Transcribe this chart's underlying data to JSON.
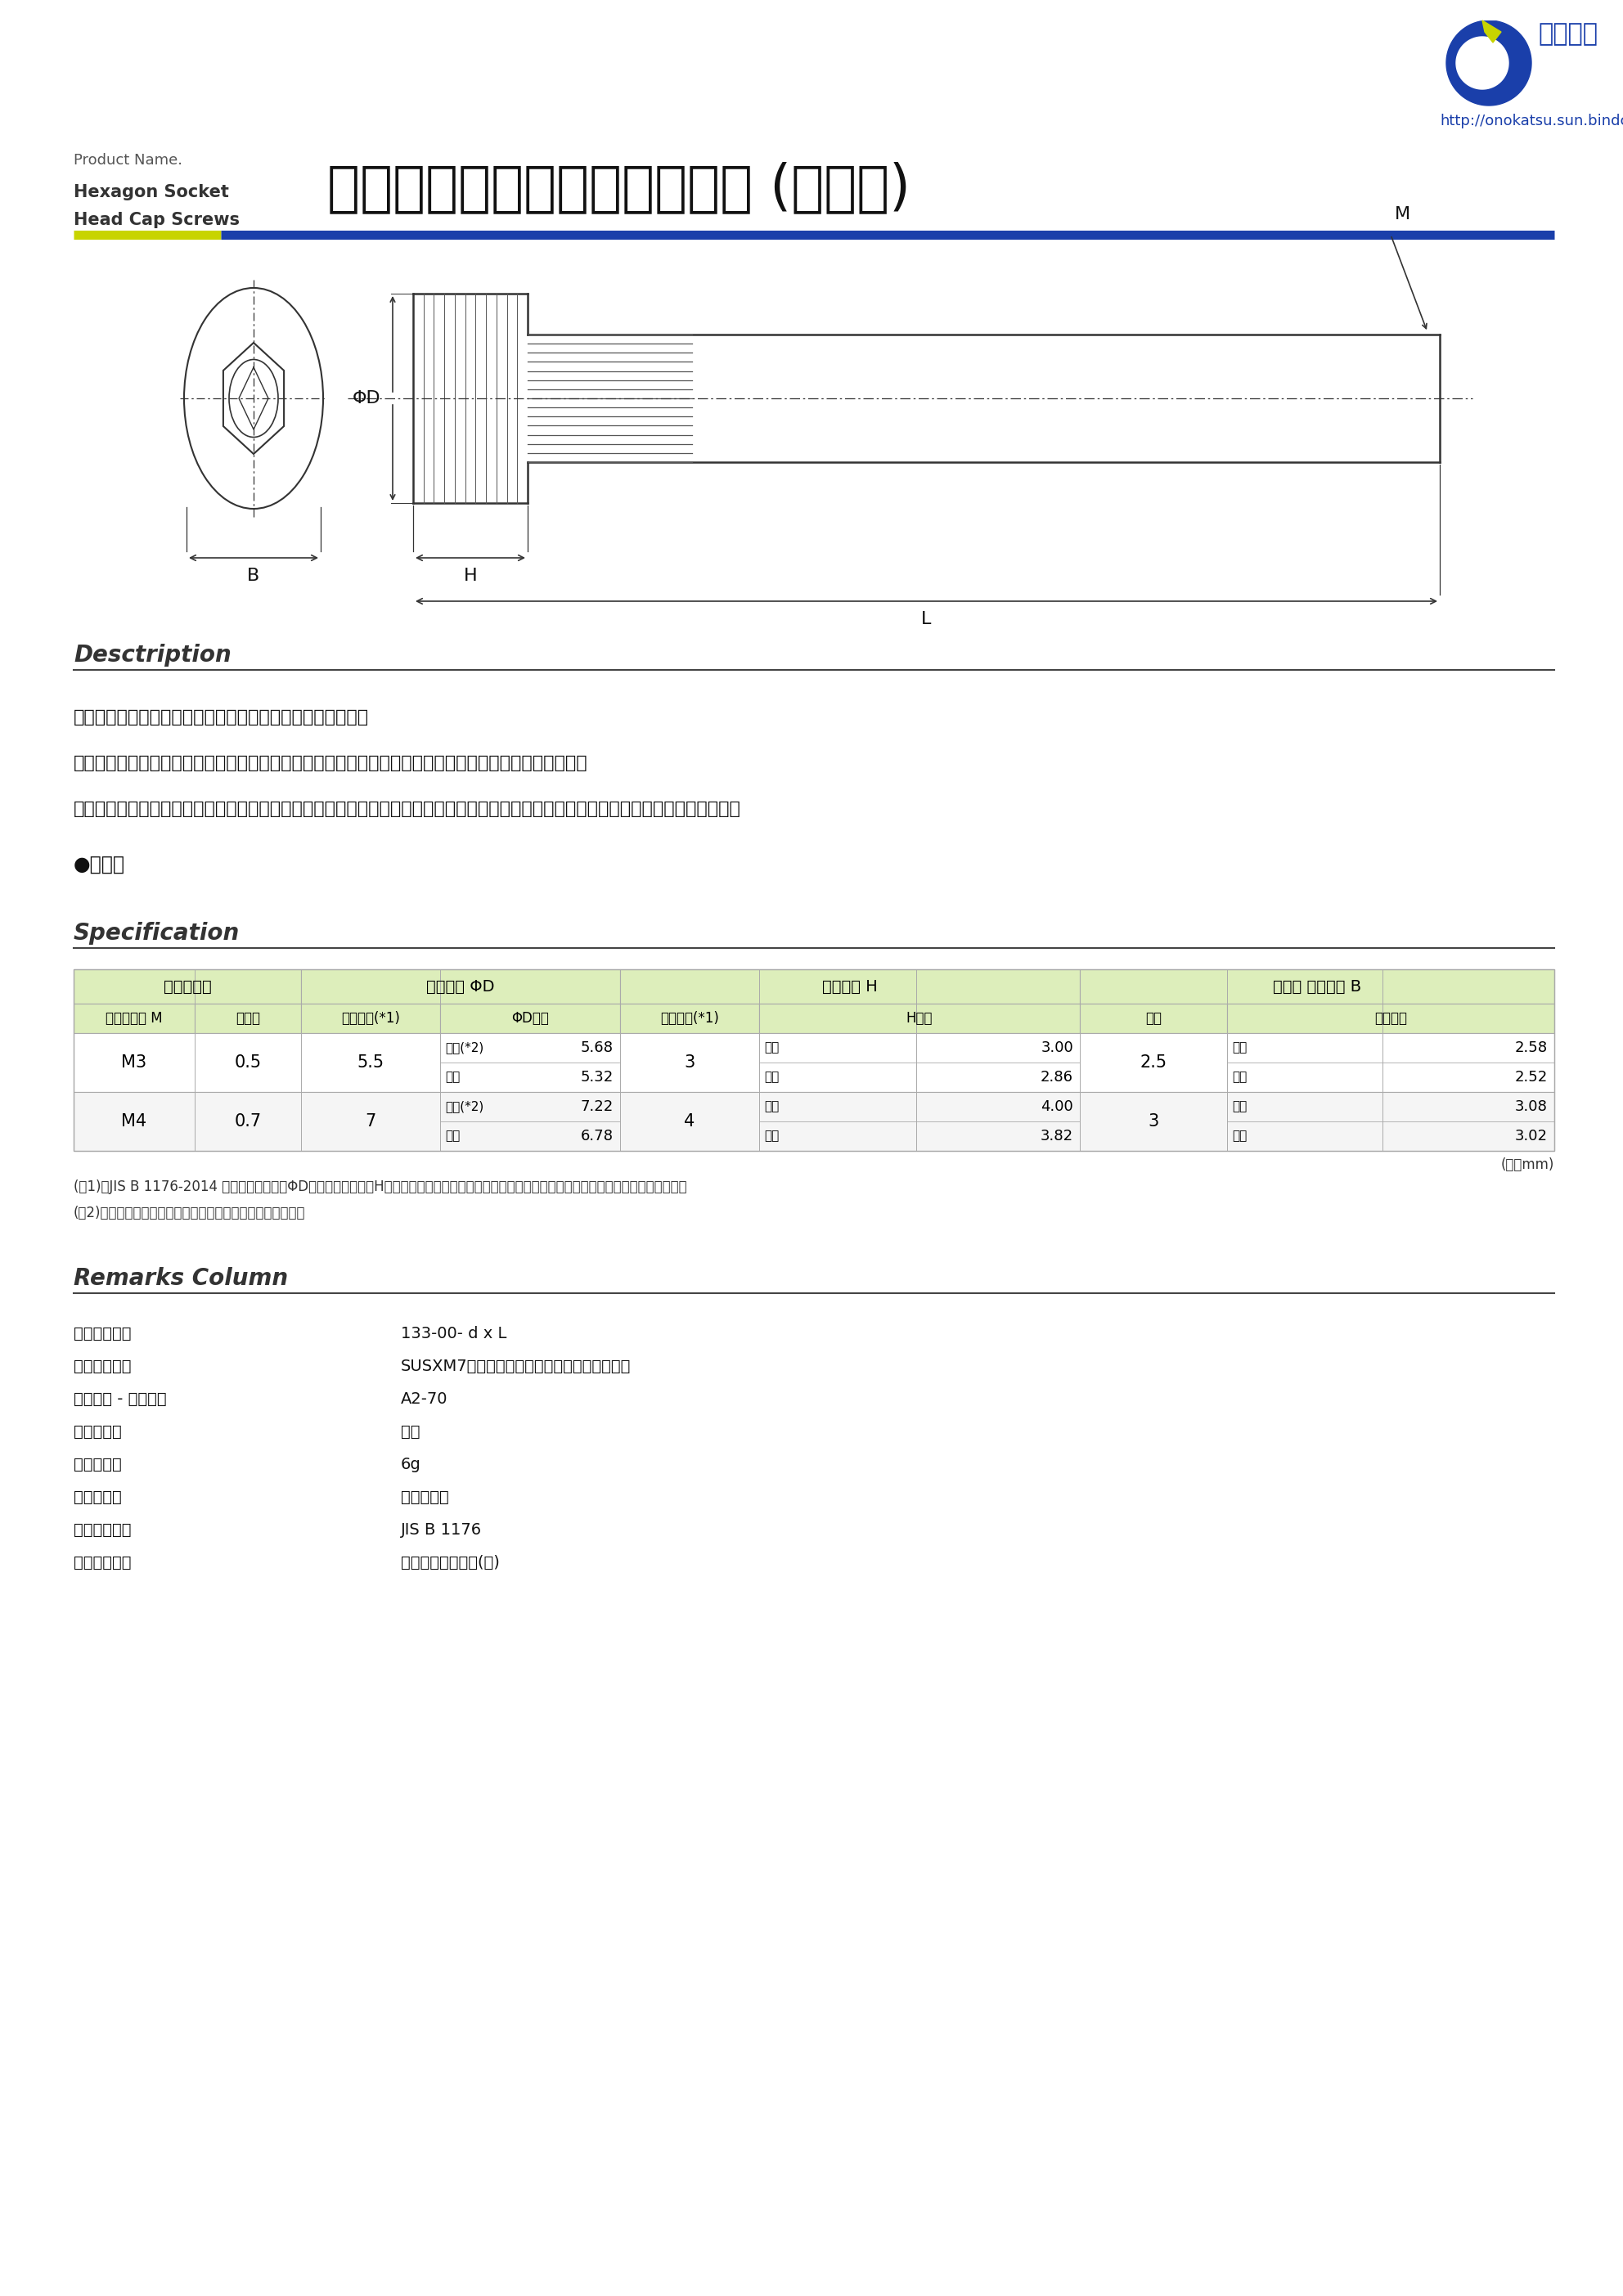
{
  "bg_color": "#ffffff",
  "url_text": "http://onokatsu.sun.bindcloud.jp",
  "product_name_en_small": "Product Name.",
  "product_name_en_line1": "Hexagon Socket",
  "product_name_en_line2": "Head Cap Screws",
  "product_name_ja": "ステンレス　六角穴付ボルト (全ネジ)",
  "accent_color_green": "#c8d400",
  "accent_color_blue": "#1a3faa",
  "desc_section_title": "Desctription",
  "desc_lines": [
    "・ステンレス製の六角穴付きボルト（全ねじ）になります。",
    "・締結には適合する六角レンチを使用します。　（六角穴対辺呼び寸法と同じサイズをご使用願います）",
    "・「六角穴付きボルト」以外にも「キャップボルト」、「キャップスクリュー」、「ソケットスクリュー」などの呼び方もございます。"
  ],
  "domestic_label": "●国産品",
  "spec_section_title": "Specification",
  "table_header_bg": "#ddeebb",
  "table_row_bg_white": "#ffffff",
  "table_row_bg_alt": "#f8f8f8",
  "table_border_color": "#aaaaaa",
  "table_data": {
    "rows": [
      {
        "m": "M3",
        "pitch": "0.5",
        "base_d": "5.5",
        "phi_d_max_label": "最大(*2)",
        "phi_d_max": "5.68",
        "phi_d_min_label": "最小",
        "phi_d_min": "5.32",
        "base_h": "3",
        "h_max_label": "最大",
        "h_max": "3.00",
        "h_min_label": "最小",
        "h_min": "2.86",
        "b_call": "2.5",
        "b_max_label": "最大",
        "b_max": "2.58",
        "b_min_label": "最小",
        "b_min": "2.52"
      },
      {
        "m": "M4",
        "pitch": "0.7",
        "base_d": "7",
        "phi_d_max_label": "最大(*2)",
        "phi_d_max": "7.22",
        "phi_d_min_label": "最小",
        "phi_d_min": "6.78",
        "base_h": "4",
        "h_max_label": "最大",
        "h_max": "4.00",
        "h_min_label": "最小",
        "h_min": "3.82",
        "b_call": "3",
        "b_max_label": "最大",
        "b_max": "3.08",
        "b_min_label": "最小",
        "b_min": "3.02"
      }
    ],
    "footnote1": "(＊1)　JIS B 1176-2014 版では《頭部外径ΦD》及び《頭部高さH》の基本寸法についての規定が無くなりましたが参考値として記載しております。",
    "footnote2": "(＊2)　頭部にローレットがある場合の規定寸法となります。",
    "unit_note": "(単位mm)"
  },
  "remarks_section_title": "Remarks Column",
  "remarks": [
    [
      "型　　　　番",
      "133-00- d x L"
    ],
    [
      "材　　　　質",
      "SUSXM7同等材（岸和田ステンレス開発鉰種）"
    ],
    [
      "銅種区分 - 強度区分",
      "A2-70"
    ],
    [
      "ねじの種類",
      "並目"
    ],
    [
      "ねじ　精度",
      "6g"
    ],
    [
      "表面　処理",
      "パシペート"
    ],
    [
      "規　　　　格",
      "JIS B 1176"
    ],
    [
      "製　　造　元",
      "岸和田ステンレス(株)"
    ]
  ]
}
